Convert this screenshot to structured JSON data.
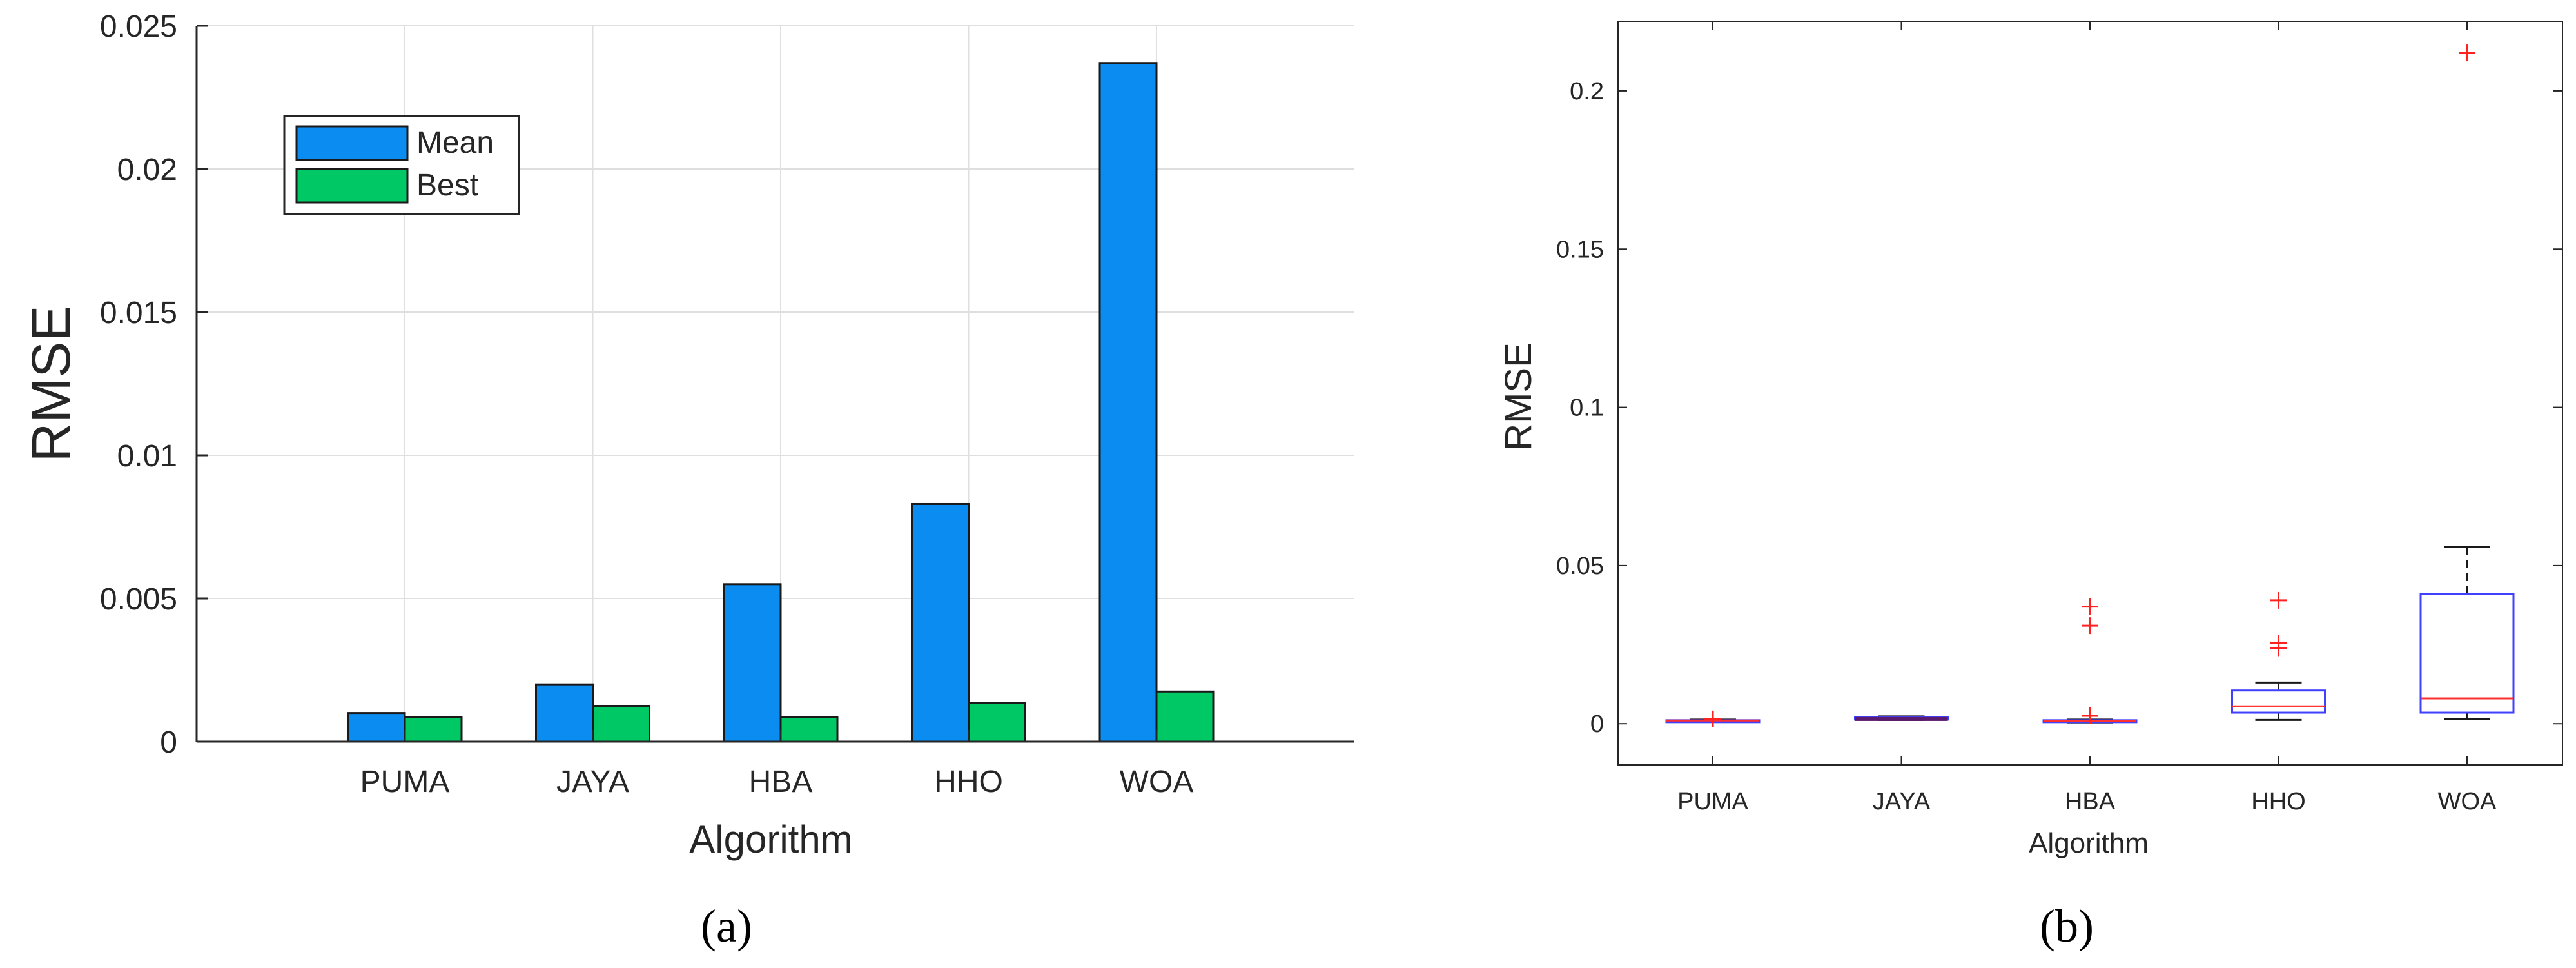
{
  "chart_data": [
    {
      "panel": "(a)",
      "type": "bar",
      "categories": [
        "PUMA",
        "JAYA",
        "HBA",
        "HHO",
        "WOA"
      ],
      "series": [
        {
          "name": "Mean",
          "values": [
            0.001,
            0.002,
            0.0055,
            0.0083,
            0.0237
          ],
          "color": "#0a8cf0"
        },
        {
          "name": "Best",
          "values": [
            0.00085,
            0.00125,
            0.00085,
            0.00135,
            0.00175
          ],
          "color": "#00c864"
        }
      ],
      "xlabel": "Algorithm",
      "ylabel": "RMSE",
      "ylim": [
        0,
        0.025
      ],
      "yticks": [
        "0",
        "0.005",
        "0.01",
        "0.015",
        "0.02",
        "0.025"
      ],
      "grid": true,
      "legend_position": "top-left"
    },
    {
      "panel": "(b)",
      "type": "boxplot",
      "categories": [
        "PUMA",
        "JAYA",
        "HBA",
        "HHO",
        "WOA"
      ],
      "boxes": [
        {
          "whisker_low": 0.0007,
          "q1": 0.0008,
          "median": 0.001,
          "q3": 0.0011,
          "whisker_high": 0.0013,
          "outliers": [
            0.0015
          ]
        },
        {
          "whisker_low": 0.0012,
          "q1": 0.0013,
          "median": 0.0017,
          "q3": 0.0021,
          "whisker_high": 0.0023,
          "outliers": []
        },
        {
          "whisker_low": 0.0004,
          "q1": 0.0006,
          "median": 0.0008,
          "q3": 0.0011,
          "whisker_high": 0.0013,
          "outliers": [
            0.0025,
            0.031,
            0.037
          ]
        },
        {
          "whisker_low": 0.0012,
          "q1": 0.0035,
          "median": 0.0055,
          "q3": 0.0105,
          "whisker_high": 0.013,
          "outliers": [
            0.024,
            0.0255,
            0.039
          ]
        },
        {
          "whisker_low": 0.0015,
          "q1": 0.0035,
          "median": 0.008,
          "q3": 0.041,
          "whisker_high": 0.056,
          "outliers": [
            0.212
          ]
        }
      ],
      "xlabel": "Algorithm",
      "ylabel": "RMSE",
      "ylim": [
        -0.013,
        0.222
      ],
      "yticks": [
        "0",
        "0.05",
        "0.1",
        "0.15",
        "0.2"
      ],
      "grid": false,
      "box_color": "#4040ff",
      "median_color": "#ff3030",
      "outlier_color": "#ff2020"
    }
  ],
  "captions": {
    "a": "(a)",
    "b": "(b)"
  }
}
